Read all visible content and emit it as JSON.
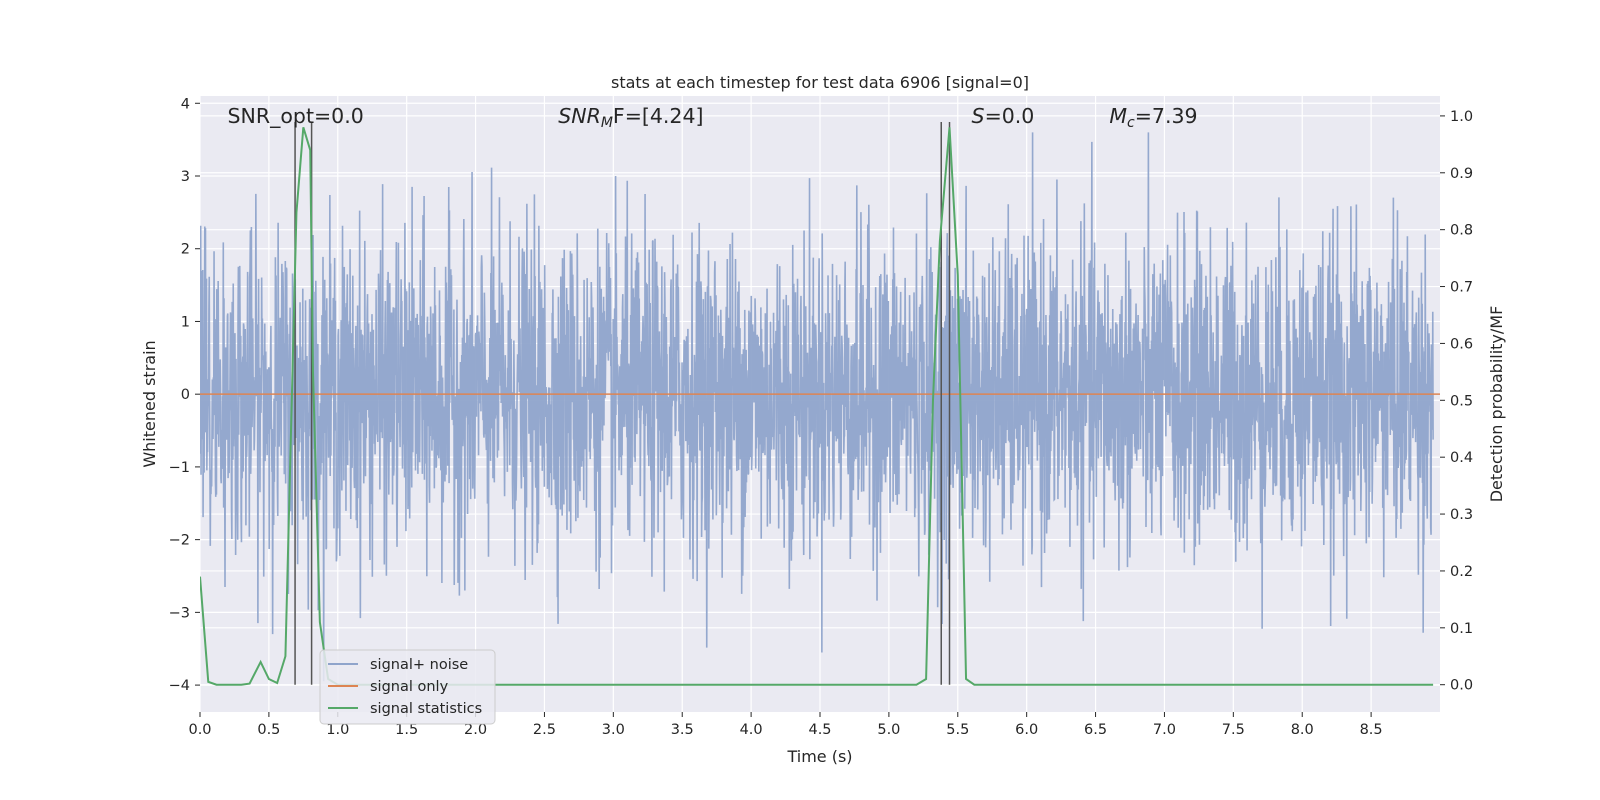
{
  "chart_data": {
    "type": "line",
    "title": "stats at each timestep for test data 6906 [signal=0]",
    "xlabel": "Time (s)",
    "ylabel": "Whitened strain",
    "y2label": "Detection probability/MF",
    "xlim": [
      0.0,
      9.0
    ],
    "ylim": [
      -4.37,
      4.1
    ],
    "y2lim": [
      -0.048,
      1.035
    ],
    "x_ticks": [
      "0.0",
      "0.5",
      "1.0",
      "1.5",
      "2.0",
      "2.5",
      "3.0",
      "3.5",
      "4.0",
      "4.5",
      "5.0",
      "5.5",
      "6.0",
      "6.5",
      "7.0",
      "7.5",
      "8.0",
      "8.5"
    ],
    "y_ticks": [
      "4",
      "3",
      "2",
      "1",
      "0",
      "−1",
      "−2",
      "−3",
      "−4"
    ],
    "y2_ticks": [
      "1.0",
      "0.9",
      "0.8",
      "0.7",
      "0.6",
      "0.5",
      "0.4",
      "0.3",
      "0.2",
      "0.1",
      "0.0"
    ],
    "grid": true,
    "legend_position": "lower-left",
    "series": [
      {
        "name": "signal+ noise",
        "axis": "left",
        "color": "#8fa4cb",
        "description_values": "noise-like whitened strain, roughly within [-4, 3.6]",
        "amplitude_range": [
          -4.0,
          3.6
        ]
      },
      {
        "name": "signal only",
        "axis": "left",
        "color": "#dd8452",
        "x": [
          0.0,
          9.0
        ],
        "y": [
          0.0,
          0.0
        ]
      },
      {
        "name": "signal statistics",
        "axis": "right",
        "color": "#55a868",
        "x": [
          0.0,
          0.06,
          0.12,
          0.2,
          0.3,
          0.36,
          0.44,
          0.5,
          0.56,
          0.62,
          0.7,
          0.75,
          0.8,
          0.82,
          0.87,
          0.93,
          1.0,
          1.5,
          2.0,
          3.0,
          4.0,
          5.0,
          5.2,
          5.27,
          5.32,
          5.37,
          5.44,
          5.5,
          5.56,
          5.62,
          6.0,
          7.0,
          8.0,
          8.95
        ],
        "y": [
          0.19,
          0.005,
          0.0,
          0.0,
          0.0,
          0.002,
          0.04,
          0.01,
          0.003,
          0.05,
          0.83,
          0.98,
          0.94,
          0.55,
          0.11,
          0.01,
          0.0,
          0.0,
          0.0,
          0.0,
          0.0,
          0.0,
          0.0,
          0.01,
          0.5,
          0.78,
          0.98,
          0.72,
          0.01,
          0.0,
          0.0,
          0.0,
          0.0,
          0.0
        ]
      }
    ],
    "vlines_x": [
      0.69,
      0.81,
      5.38,
      5.44
    ],
    "vline_color": "#555555",
    "annotations": [
      {
        "text": "SNR_opt=0.0",
        "x": 0.2
      },
      {
        "text": "SNR",
        "sub": "M",
        "tail": "F=[4.24]",
        "x": 2.6,
        "italic_main": true
      },
      {
        "text": "S",
        "tail": "=0.0",
        "x": 5.6,
        "italic_main": true
      },
      {
        "text": "M",
        "sub": "c",
        "tail": "=7.39",
        "x": 6.6,
        "italic_main": true
      }
    ]
  }
}
